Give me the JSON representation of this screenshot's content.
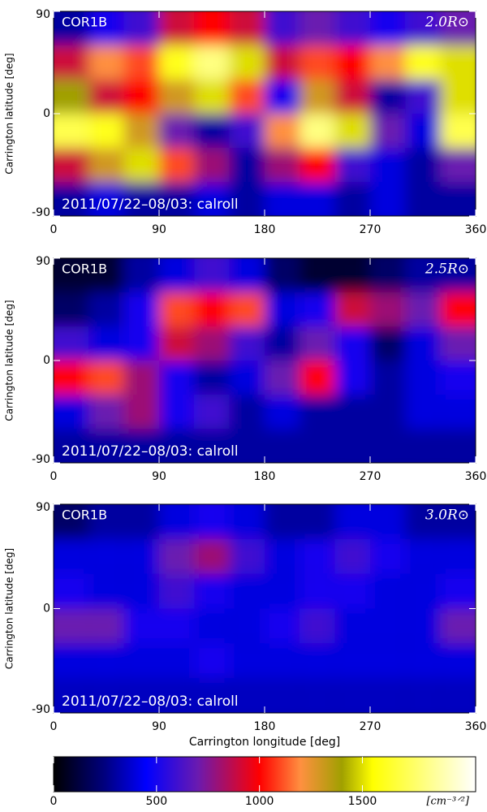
{
  "chart_data": [
    {
      "type": "heatmap",
      "title": "COR1B",
      "subtitle": "2.0R⊙",
      "annotation": "2011/07/22–08/03: calroll",
      "y_label": "Carrington latitude [deg]",
      "xlim": [
        0,
        360
      ],
      "xticks": [
        0,
        90,
        180,
        270,
        360
      ],
      "ylim": [
        -90,
        90
      ],
      "yticks": [
        -90,
        0,
        90
      ],
      "xbins": [
        0,
        30,
        60,
        90,
        120,
        150,
        180,
        210,
        240,
        270,
        300,
        330,
        360
      ],
      "ybins": [
        90,
        60,
        30,
        0,
        -30,
        -60,
        -90
      ],
      "values": [
        [
          300,
          500,
          600,
          900,
          1000,
          900,
          600,
          700,
          600,
          500,
          600,
          700
        ],
        [
          900,
          1200,
          1100,
          1600,
          1800,
          1500,
          900,
          1100,
          1000,
          1200,
          1600,
          1500
        ],
        [
          1400,
          900,
          1000,
          1300,
          1500,
          1100,
          500,
          1300,
          900,
          300,
          600,
          1500
        ],
        [
          1700,
          1600,
          1300,
          700,
          300,
          600,
          1200,
          1800,
          1500,
          700,
          400,
          1700
        ],
        [
          900,
          1300,
          1500,
          1100,
          800,
          300,
          800,
          1000,
          600,
          400,
          300,
          700
        ],
        [
          300,
          400,
          300,
          300,
          400,
          300,
          400,
          400,
          300,
          400,
          300,
          300
        ]
      ]
    },
    {
      "type": "heatmap",
      "title": "COR1B",
      "subtitle": "2.5R⊙",
      "annotation": "2011/07/22–08/03: calroll",
      "y_label": "Carrington latitude [deg]",
      "xlim": [
        0,
        360
      ],
      "xticks": [
        0,
        90,
        180,
        270,
        360
      ],
      "ylim": [
        -90,
        90
      ],
      "yticks": [
        -90,
        0,
        90
      ],
      "xbins": [
        0,
        30,
        60,
        90,
        120,
        150,
        180,
        210,
        240,
        270,
        300,
        330,
        360
      ],
      "ybins": [
        90,
        60,
        30,
        0,
        -30,
        -60,
        -90
      ],
      "values": [
        [
          100,
          100,
          300,
          400,
          600,
          400,
          200,
          100,
          100,
          200,
          300,
          300
        ],
        [
          200,
          300,
          500,
          1100,
          1000,
          1100,
          400,
          500,
          900,
          800,
          700,
          1000
        ],
        [
          600,
          400,
          500,
          900,
          800,
          600,
          300,
          700,
          500,
          200,
          400,
          700
        ],
        [
          1000,
          1100,
          800,
          500,
          300,
          400,
          700,
          1000,
          500,
          300,
          400,
          500
        ],
        [
          400,
          700,
          800,
          500,
          600,
          300,
          400,
          300,
          300,
          300,
          400,
          400
        ],
        [
          300,
          300,
          300,
          300,
          300,
          300,
          300,
          300,
          300,
          300,
          300,
          300
        ]
      ]
    },
    {
      "type": "heatmap",
      "title": "COR1B",
      "subtitle": "3.0R⊙",
      "annotation": "2011/07/22–08/03: calroll",
      "y_label": "Carrington latitude [deg]",
      "x_label": "Carrington longitude [deg]",
      "xlim": [
        0,
        360
      ],
      "xticks": [
        0,
        90,
        180,
        270,
        360
      ],
      "ylim": [
        -90,
        90
      ],
      "yticks": [
        -90,
        0,
        90
      ],
      "xbins": [
        0,
        30,
        60,
        90,
        120,
        150,
        180,
        210,
        240,
        270,
        300,
        330,
        360
      ],
      "ybins": [
        90,
        60,
        30,
        0,
        -30,
        -60,
        -90
      ],
      "values": [
        [
          200,
          300,
          300,
          400,
          500,
          400,
          300,
          300,
          400,
          400,
          300,
          300
        ],
        [
          400,
          400,
          400,
          700,
          800,
          600,
          400,
          500,
          600,
          500,
          400,
          400
        ],
        [
          500,
          400,
          400,
          600,
          500,
          400,
          400,
          500,
          500,
          400,
          400,
          500
        ],
        [
          700,
          700,
          500,
          500,
          400,
          400,
          500,
          600,
          400,
          400,
          400,
          700
        ],
        [
          400,
          400,
          400,
          400,
          500,
          400,
          400,
          400,
          400,
          400,
          400,
          400
        ],
        [
          350,
          350,
          350,
          350,
          350,
          350,
          350,
          350,
          350,
          350,
          350,
          350
        ]
      ]
    },
    {
      "type": "colorbar",
      "label": "[cm⁻³ᐟ²]",
      "xlim": [
        0,
        2050
      ],
      "xticks": [
        0,
        500,
        1000,
        1500
      ],
      "colormap": [
        [
          0,
          "#000000"
        ],
        [
          250,
          "#000080"
        ],
        [
          450,
          "#0000ff"
        ],
        [
          700,
          "#6a1ab0"
        ],
        [
          1000,
          "#ff0000"
        ],
        [
          1200,
          "#ff9040"
        ],
        [
          1400,
          "#a0a000"
        ],
        [
          1550,
          "#ffff00"
        ],
        [
          2050,
          "#ffffff"
        ]
      ]
    }
  ]
}
